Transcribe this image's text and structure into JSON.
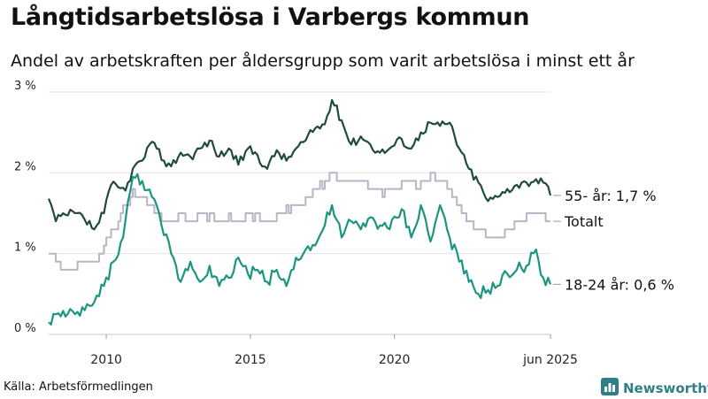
{
  "header": {
    "title": "Långtidsarbetslösa i Varbergs kommun",
    "subtitle": "Andel av arbetskraften per åldersgrupp som varit arbetslösa i minst ett år"
  },
  "footer": {
    "source": "Källa: Arbetsförmedlingen",
    "brand": "Newsworthy"
  },
  "colors": {
    "series_55": "#1f4a3d",
    "series_total": "#b8b6c6",
    "series_18_24": "#1a9680",
    "grid": "#e4e4e4",
    "brand": "#2f7f8a"
  },
  "chart_data": {
    "type": "line",
    "title": "Långtidsarbetslösa i Varbergs kommun",
    "subtitle": "Andel av arbetskraften per åldersgrupp som varit arbetslösa i minst ett år",
    "x_range": [
      "2008-01",
      "2025-06"
    ],
    "x_ticks": [
      {
        "date": "2010-01",
        "label": "2010"
      },
      {
        "date": "2015-01",
        "label": "2015"
      },
      {
        "date": "2020-01",
        "label": "2020"
      },
      {
        "date": "2025-06",
        "label": "jun 2025"
      }
    ],
    "ylim": [
      0,
      3
    ],
    "y_ticks": [
      {
        "value": 0,
        "label": "0 %"
      },
      {
        "value": 1,
        "label": "1 %"
      },
      {
        "value": 2,
        "label": "2 %"
      },
      {
        "value": 3,
        "label": "3 %"
      }
    ],
    "grid": true,
    "unit": "%",
    "series": [
      {
        "key": "s55",
        "label": "55- år: 1,7 %",
        "color": "#1f4a3d",
        "points": [
          [
            "2008-01",
            1.68
          ],
          [
            "2008-04",
            1.4
          ],
          [
            "2008-08",
            1.48
          ],
          [
            "2008-12",
            1.5
          ],
          [
            "2009-04",
            1.42
          ],
          [
            "2009-08",
            1.3
          ],
          [
            "2009-12",
            1.5
          ],
          [
            "2010-03",
            1.85
          ],
          [
            "2010-06",
            1.82
          ],
          [
            "2010-09",
            1.78
          ],
          [
            "2010-12",
            2.05
          ],
          [
            "2011-04",
            2.15
          ],
          [
            "2011-07",
            2.35
          ],
          [
            "2011-10",
            2.3
          ],
          [
            "2012-01",
            2.15
          ],
          [
            "2012-04",
            2.08
          ],
          [
            "2012-08",
            2.25
          ],
          [
            "2012-12",
            2.2
          ],
          [
            "2013-04",
            2.3
          ],
          [
            "2013-08",
            2.4
          ],
          [
            "2013-12",
            2.2
          ],
          [
            "2014-04",
            2.3
          ],
          [
            "2014-08",
            2.1
          ],
          [
            "2014-12",
            2.3
          ],
          [
            "2015-04",
            2.22
          ],
          [
            "2015-08",
            2.05
          ],
          [
            "2015-12",
            2.28
          ],
          [
            "2016-04",
            2.15
          ],
          [
            "2016-08",
            2.3
          ],
          [
            "2016-12",
            2.4
          ],
          [
            "2017-04",
            2.55
          ],
          [
            "2017-08",
            2.6
          ],
          [
            "2017-11",
            2.9
          ],
          [
            "2018-03",
            2.65
          ],
          [
            "2018-07",
            2.35
          ],
          [
            "2018-11",
            2.45
          ],
          [
            "2019-03",
            2.35
          ],
          [
            "2019-07",
            2.25
          ],
          [
            "2019-11",
            2.3
          ],
          [
            "2020-04",
            2.42
          ],
          [
            "2020-08",
            2.3
          ],
          [
            "2020-12",
            2.5
          ],
          [
            "2021-04",
            2.62
          ],
          [
            "2021-08",
            2.58
          ],
          [
            "2021-12",
            2.62
          ],
          [
            "2022-04",
            2.3
          ],
          [
            "2022-08",
            2.05
          ],
          [
            "2022-12",
            1.88
          ],
          [
            "2023-04",
            1.65
          ],
          [
            "2023-08",
            1.7
          ],
          [
            "2023-12",
            1.8
          ],
          [
            "2024-04",
            1.85
          ],
          [
            "2024-08",
            1.88
          ],
          [
            "2024-12",
            1.92
          ],
          [
            "2025-03",
            1.88
          ],
          [
            "2025-06",
            1.72
          ]
        ]
      },
      {
        "key": "total",
        "label": "Totalt",
        "color": "#b8b6c6",
        "points": [
          [
            "2008-01",
            1.0
          ],
          [
            "2008-04",
            0.9
          ],
          [
            "2008-08",
            0.82
          ],
          [
            "2008-12",
            0.82
          ],
          [
            "2009-04",
            0.9
          ],
          [
            "2009-08",
            0.9
          ],
          [
            "2009-12",
            1.1
          ],
          [
            "2010-04",
            1.3
          ],
          [
            "2010-08",
            1.55
          ],
          [
            "2010-12",
            1.75
          ],
          [
            "2011-04",
            1.7
          ],
          [
            "2011-08",
            1.55
          ],
          [
            "2011-12",
            1.4
          ],
          [
            "2012-04",
            1.4
          ],
          [
            "2012-08",
            1.45
          ],
          [
            "2012-12",
            1.4
          ],
          [
            "2013-04",
            1.45
          ],
          [
            "2013-08",
            1.45
          ],
          [
            "2013-12",
            1.4
          ],
          [
            "2014-04",
            1.45
          ],
          [
            "2014-08",
            1.4
          ],
          [
            "2014-12",
            1.45
          ],
          [
            "2015-04",
            1.45
          ],
          [
            "2015-08",
            1.4
          ],
          [
            "2015-12",
            1.45
          ],
          [
            "2016-04",
            1.55
          ],
          [
            "2016-08",
            1.6
          ],
          [
            "2016-12",
            1.65
          ],
          [
            "2017-04",
            1.8
          ],
          [
            "2017-08",
            1.85
          ],
          [
            "2017-11",
            2.0
          ],
          [
            "2018-03",
            1.9
          ],
          [
            "2018-07",
            1.85
          ],
          [
            "2018-11",
            1.9
          ],
          [
            "2019-03",
            1.8
          ],
          [
            "2019-07",
            1.75
          ],
          [
            "2019-11",
            1.8
          ],
          [
            "2020-04",
            1.85
          ],
          [
            "2020-08",
            1.85
          ],
          [
            "2020-12",
            1.85
          ],
          [
            "2021-04",
            1.95
          ],
          [
            "2021-08",
            1.9
          ],
          [
            "2021-12",
            1.75
          ],
          [
            "2022-04",
            1.6
          ],
          [
            "2022-08",
            1.4
          ],
          [
            "2022-12",
            1.3
          ],
          [
            "2023-04",
            1.2
          ],
          [
            "2023-08",
            1.2
          ],
          [
            "2023-12",
            1.3
          ],
          [
            "2024-04",
            1.4
          ],
          [
            "2024-08",
            1.45
          ],
          [
            "2024-12",
            1.5
          ],
          [
            "2025-03",
            1.45
          ],
          [
            "2025-06",
            1.4
          ]
        ]
      },
      {
        "key": "s18",
        "label": "18-24 år: 0,6 %",
        "color": "#1a9680",
        "points": [
          [
            "2008-01",
            0.15
          ],
          [
            "2008-04",
            0.25
          ],
          [
            "2008-08",
            0.22
          ],
          [
            "2008-12",
            0.25
          ],
          [
            "2009-04",
            0.3
          ],
          [
            "2009-08",
            0.4
          ],
          [
            "2009-12",
            0.6
          ],
          [
            "2010-04",
            0.9
          ],
          [
            "2010-08",
            1.2
          ],
          [
            "2010-12",
            1.95
          ],
          [
            "2011-04",
            1.9
          ],
          [
            "2011-08",
            1.7
          ],
          [
            "2011-12",
            1.35
          ],
          [
            "2012-04",
            1.0
          ],
          [
            "2012-08",
            0.65
          ],
          [
            "2012-12",
            0.9
          ],
          [
            "2013-04",
            0.65
          ],
          [
            "2013-08",
            0.85
          ],
          [
            "2013-12",
            0.6
          ],
          [
            "2014-04",
            0.7
          ],
          [
            "2014-08",
            0.95
          ],
          [
            "2014-12",
            0.75
          ],
          [
            "2015-04",
            0.8
          ],
          [
            "2015-08",
            0.65
          ],
          [
            "2015-12",
            0.8
          ],
          [
            "2016-04",
            0.6
          ],
          [
            "2016-08",
            0.95
          ],
          [
            "2016-12",
            1.05
          ],
          [
            "2017-04",
            1.1
          ],
          [
            "2017-08",
            1.35
          ],
          [
            "2017-11",
            1.6
          ],
          [
            "2018-03",
            1.2
          ],
          [
            "2018-07",
            1.4
          ],
          [
            "2018-11",
            1.3
          ],
          [
            "2019-03",
            1.45
          ],
          [
            "2019-07",
            1.35
          ],
          [
            "2019-11",
            1.3
          ],
          [
            "2020-04",
            1.55
          ],
          [
            "2020-08",
            1.2
          ],
          [
            "2020-12",
            1.6
          ],
          [
            "2021-04",
            1.15
          ],
          [
            "2021-08",
            1.6
          ],
          [
            "2021-12",
            1.2
          ],
          [
            "2022-04",
            0.9
          ],
          [
            "2022-08",
            0.65
          ],
          [
            "2022-12",
            0.5
          ],
          [
            "2023-04",
            0.55
          ],
          [
            "2023-08",
            0.6
          ],
          [
            "2023-12",
            0.75
          ],
          [
            "2024-04",
            0.8
          ],
          [
            "2024-08",
            0.85
          ],
          [
            "2024-12",
            1.05
          ],
          [
            "2025-03",
            0.7
          ],
          [
            "2025-06",
            0.62
          ]
        ]
      }
    ]
  }
}
